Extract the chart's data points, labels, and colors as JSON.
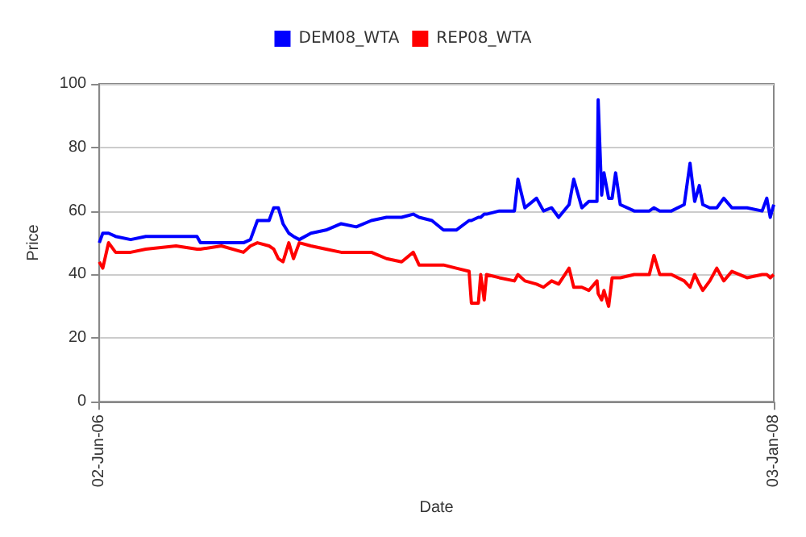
{
  "chart_data": {
    "type": "line",
    "xlabel": "Date",
    "ylabel": "Price",
    "legend": "top",
    "grid": "y",
    "marker": "none",
    "line_style": "solid",
    "xlim": [
      "2006-06-02",
      "2008-01-03"
    ],
    "xticks": [
      {
        "value": "2006-06-02",
        "label": "02-Jun-06"
      },
      {
        "value": "2008-01-03",
        "label": "03-Jan-08"
      }
    ],
    "ylim": [
      0,
      100
    ],
    "yticks": [
      0,
      20,
      40,
      60,
      80,
      100
    ],
    "x": [
      "2006-06-02",
      "2006-06-05",
      "2006-06-10",
      "2006-06-16",
      "2006-06-29",
      "2006-07-12",
      "2006-08-07",
      "2006-08-25",
      "2006-08-28",
      "2006-09-15",
      "2006-10-04",
      "2006-10-10",
      "2006-10-16",
      "2006-10-26",
      "2006-10-30",
      "2006-11-03",
      "2006-11-07",
      "2006-11-12",
      "2006-11-16",
      "2006-11-21",
      "2006-12-01",
      "2006-12-14",
      "2006-12-27",
      "2007-01-09",
      "2007-01-22",
      "2007-02-04",
      "2007-02-17",
      "2007-02-27",
      "2007-03-04",
      "2007-03-15",
      "2007-03-25",
      "2007-04-05",
      "2007-04-16",
      "2007-04-18",
      "2007-04-24",
      "2007-04-26",
      "2007-04-29",
      "2007-05-01",
      "2007-05-12",
      "2007-05-25",
      "2007-05-28",
      "2007-06-03",
      "2007-06-13",
      "2007-06-19",
      "2007-06-26",
      "2007-07-02",
      "2007-07-11",
      "2007-07-15",
      "2007-07-22",
      "2007-07-28",
      "2007-08-04",
      "2007-08-05",
      "2007-08-08",
      "2007-08-10",
      "2007-08-14",
      "2007-08-17",
      "2007-08-20",
      "2007-08-24",
      "2007-09-05",
      "2007-09-18",
      "2007-09-22",
      "2007-09-27",
      "2007-10-07",
      "2007-10-18",
      "2007-10-23",
      "2007-10-27",
      "2007-10-31",
      "2007-11-03",
      "2007-11-09",
      "2007-11-15",
      "2007-11-21",
      "2007-11-28",
      "2007-12-11",
      "2007-12-24",
      "2007-12-28",
      "2007-12-31",
      "2008-01-03"
    ],
    "series": [
      {
        "name": "DEM08_WTA",
        "color": "#0000ff",
        "values": [
          50,
          53,
          53,
          52,
          51,
          52,
          52,
          52,
          50,
          50,
          50,
          51,
          57,
          57,
          61,
          61,
          56,
          53,
          52,
          51,
          53,
          54,
          56,
          55,
          57,
          58,
          58,
          59,
          58,
          57,
          54,
          54,
          57,
          57,
          58,
          58,
          59,
          59,
          60,
          60,
          70,
          61,
          64,
          60,
          61,
          58,
          62,
          70,
          61,
          63,
          63,
          95,
          65,
          72,
          64,
          64,
          72,
          62,
          60,
          60,
          61,
          60,
          60,
          62,
          75,
          63,
          68,
          62,
          61,
          61,
          64,
          61,
          61,
          60,
          64,
          58,
          62
        ]
      },
      {
        "name": "REP08_WTA",
        "color": "#ff0000",
        "values": [
          44,
          42,
          50,
          47,
          47,
          48,
          49,
          48,
          48,
          49,
          47,
          49,
          50,
          49,
          48,
          45,
          44,
          50,
          45,
          50,
          49,
          48,
          47,
          47,
          47,
          45,
          44,
          47,
          43,
          43,
          43,
          42,
          41,
          31,
          31,
          40,
          32,
          40,
          39,
          38,
          40,
          38,
          37,
          36,
          38,
          37,
          42,
          36,
          36,
          35,
          38,
          34,
          32,
          35,
          30,
          39,
          39,
          39,
          40,
          40,
          46,
          40,
          40,
          38,
          36,
          40,
          37,
          35,
          38,
          42,
          38,
          41,
          39,
          40,
          40,
          39,
          40
        ]
      }
    ]
  }
}
